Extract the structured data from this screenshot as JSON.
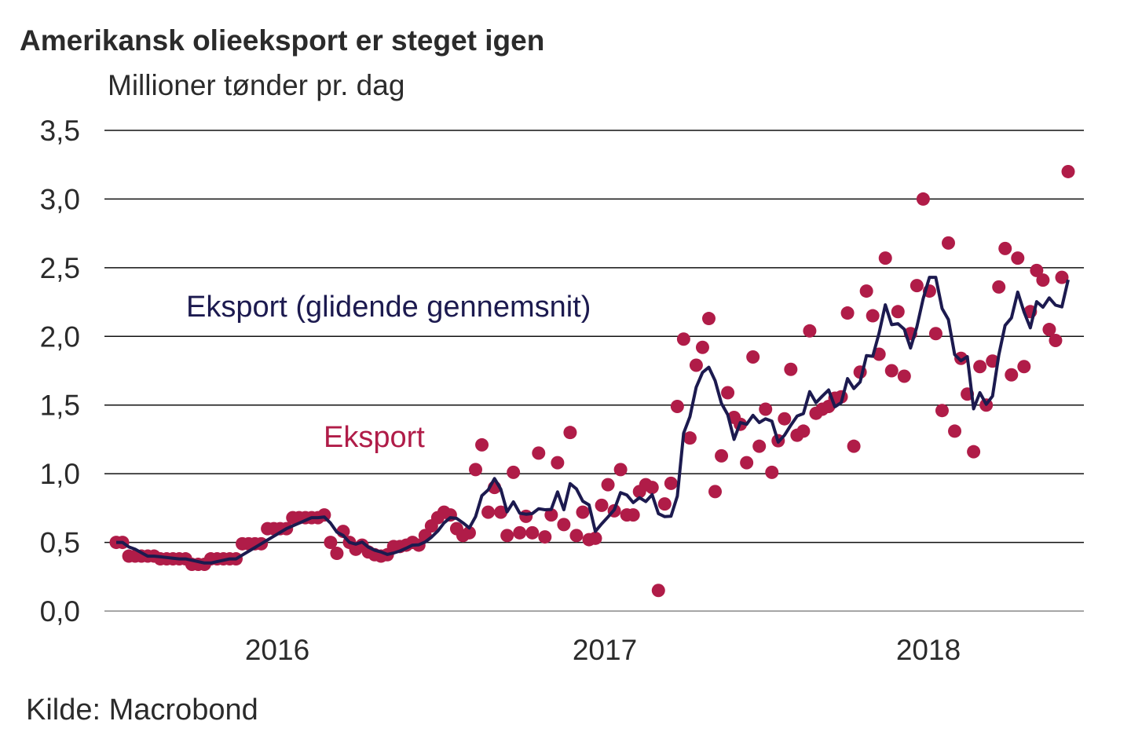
{
  "chart_data": {
    "type": "scatter+line",
    "title": "Amerikansk olieeksport er steget igen",
    "ylabel": "Millioner tønder pr. dag",
    "ylim": [
      0,
      3.5
    ],
    "yticks": [
      "0,0",
      "0,5",
      "1,0",
      "1,5",
      "2,0",
      "2,5",
      "3,0",
      "3,5"
    ],
    "ytick_values": [
      0,
      0.5,
      1,
      1.5,
      2,
      2.5,
      3,
      3.5
    ],
    "xticks": [
      "2016",
      "2017",
      "2018"
    ],
    "grid": "horizontal",
    "frequency": "weekly",
    "start": "2016-01",
    "series": [
      {
        "name": "Eksport",
        "kind": "scatter",
        "color": "#b01c48",
        "values": [
          0.5,
          0.5,
          0.4,
          0.4,
          0.4,
          0.4,
          0.4,
          0.38,
          0.38,
          0.38,
          0.38,
          0.38,
          0.34,
          0.34,
          0.34,
          0.38,
          0.38,
          0.38,
          0.38,
          0.38,
          0.49,
          0.49,
          0.49,
          0.49,
          0.6,
          0.6,
          0.6,
          0.6,
          0.68,
          0.68,
          0.68,
          0.68,
          0.68,
          0.7,
          0.5,
          0.42,
          0.58,
          0.5,
          0.45,
          0.48,
          0.43,
          0.41,
          0.4,
          0.41,
          0.47,
          0.47,
          0.48,
          0.5,
          0.48,
          0.55,
          0.62,
          0.68,
          0.72,
          0.7,
          0.6,
          0.55,
          0.57,
          1.03,
          1.21,
          0.72,
          0.9,
          0.72,
          0.55,
          1.01,
          0.57,
          0.69,
          0.57,
          1.15,
          0.54,
          0.7,
          1.08,
          0.63,
          1.3,
          0.55,
          0.72,
          0.52,
          0.53,
          0.77,
          0.92,
          0.73,
          1.03,
          0.7,
          0.7,
          0.87,
          0.92,
          0.9,
          0.15,
          0.78,
          0.93,
          1.49,
          1.98,
          1.26,
          1.79,
          1.92,
          2.13,
          0.87,
          1.13,
          1.59,
          1.41,
          1.36,
          1.08,
          1.85,
          1.2,
          1.47,
          1.01,
          1.24,
          1.4,
          1.76,
          1.28,
          1.31,
          2.04,
          1.44,
          1.47,
          1.49,
          1.55,
          1.56,
          2.17,
          1.2,
          1.74,
          2.33,
          2.15,
          1.87,
          2.57,
          1.75,
          2.18,
          1.71,
          2.02,
          2.37,
          3.0,
          2.33,
          2.02,
          1.46,
          2.68,
          1.31,
          1.84,
          1.58,
          1.16,
          1.78,
          1.5,
          1.82,
          2.36,
          2.64,
          1.72,
          2.57,
          1.78,
          2.18,
          2.48,
          2.41,
          2.05,
          1.97,
          2.43,
          3.2
        ]
      },
      {
        "name": "Eksport (glidende gennemsnit)",
        "kind": "line",
        "color": "#1c1a4f",
        "moving_average_weeks": 4
      }
    ],
    "source": "Kilde: Macrobond"
  }
}
